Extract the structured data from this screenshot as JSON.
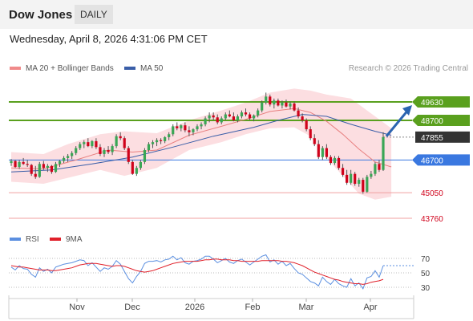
{
  "header": {
    "title": "Dow Jones",
    "timeframe": "DAILY"
  },
  "datetime": "Wednesday, April 8, 2026 4:31:06 PM CET",
  "legend": {
    "bb_label": "MA 20 + Bollinger Bands",
    "ma50_label": "MA 50",
    "rsi_label": "RSI",
    "ma9_label": "9MA",
    "credit": "Research © 2026 Trading Central"
  },
  "colors": {
    "up": "#3aa655",
    "down": "#d0021b",
    "bb_fill": "#fbd8dc",
    "ma20": "#e88080",
    "ma50": "#3a5ea8",
    "resistance": "#5aa01e",
    "support_blue": "#3a78e0",
    "support_red": "#f0a0a0",
    "last_price": "#333333",
    "arrow": "#2b64b0",
    "rsi": "#5b8fe0",
    "rsi_ma": "#e0202a"
  },
  "chart_data": [
    {
      "type": "candlestick",
      "title": "Dow Jones",
      "x_tick_labels": [
        "Nov",
        "Dec",
        "2026",
        "Feb",
        "Mar",
        "Apr"
      ],
      "price_levels": [
        {
          "value": 49630,
          "label": "49630",
          "kind": "resistance"
        },
        {
          "value": 48700,
          "label": "48700",
          "kind": "resistance"
        },
        {
          "value": 47855,
          "label": "47855",
          "kind": "last"
        },
        {
          "value": 46700,
          "label": "46700",
          "kind": "support"
        },
        {
          "value": 45050,
          "label": "45050",
          "kind": "support"
        },
        {
          "value": 43760,
          "label": "43760",
          "kind": "support"
        }
      ],
      "ylim": [
        43300,
        50600
      ],
      "series": [
        {
          "name": "MA 20 + Bollinger Bands"
        },
        {
          "name": "MA 50"
        }
      ],
      "candles": [
        [
          46550,
          46750,
          46400,
          46650
        ],
        [
          46650,
          46700,
          46300,
          46350
        ],
        [
          46350,
          46700,
          46250,
          46600
        ],
        [
          46600,
          46800,
          46450,
          46500
        ],
        [
          46500,
          46700,
          46350,
          46450
        ],
        [
          46450,
          46500,
          45900,
          46000
        ],
        [
          46000,
          46400,
          45750,
          45850
        ],
        [
          45850,
          46600,
          45800,
          46500
        ],
        [
          46500,
          46650,
          46200,
          46300
        ],
        [
          46300,
          46500,
          46100,
          46400
        ],
        [
          46400,
          46450,
          46000,
          46100
        ],
        [
          46100,
          46600,
          46050,
          46500
        ],
        [
          46500,
          46700,
          46350,
          46650
        ],
        [
          46650,
          46900,
          46550,
          46800
        ],
        [
          46800,
          47000,
          46600,
          46900
        ],
        [
          46900,
          47150,
          46750,
          47050
        ],
        [
          47050,
          47400,
          46950,
          47300
        ],
        [
          47300,
          47600,
          47200,
          47500
        ],
        [
          47500,
          47700,
          47300,
          47600
        ],
        [
          47600,
          47800,
          47350,
          47400
        ],
        [
          47400,
          47700,
          47300,
          47650
        ],
        [
          47650,
          47800,
          47250,
          47350
        ],
        [
          47350,
          47500,
          46900,
          47000
        ],
        [
          47000,
          47300,
          46850,
          47200
        ],
        [
          47200,
          47400,
          47000,
          47100
        ],
        [
          47100,
          47500,
          46950,
          47400
        ],
        [
          47400,
          48000,
          47300,
          47900
        ],
        [
          47900,
          48100,
          47700,
          47800
        ],
        [
          47800,
          47900,
          47200,
          47300
        ],
        [
          47300,
          47400,
          46500,
          46600
        ],
        [
          46600,
          46700,
          45950,
          46000
        ],
        [
          46000,
          46400,
          45900,
          46300
        ],
        [
          46300,
          46700,
          46200,
          46600
        ],
        [
          46600,
          47300,
          46500,
          47200
        ],
        [
          47200,
          47600,
          47100,
          47500
        ],
        [
          47500,
          47700,
          47300,
          47600
        ],
        [
          47600,
          47800,
          47400,
          47700
        ],
        [
          47700,
          47800,
          47500,
          47650
        ],
        [
          47650,
          47900,
          47550,
          47850
        ],
        [
          47850,
          48100,
          47700,
          48000
        ],
        [
          48000,
          48500,
          47900,
          48400
        ],
        [
          48400,
          48600,
          48200,
          48300
        ],
        [
          48300,
          48500,
          48150,
          48450
        ],
        [
          48450,
          48600,
          48100,
          48200
        ],
        [
          48200,
          48400,
          47900,
          48100
        ],
        [
          48100,
          48300,
          47950,
          48250
        ],
        [
          48250,
          48500,
          48150,
          48400
        ],
        [
          48400,
          48600,
          48250,
          48500
        ],
        [
          48500,
          48900,
          48400,
          48800
        ],
        [
          48800,
          49100,
          48600,
          48950
        ],
        [
          48950,
          49100,
          48700,
          48850
        ],
        [
          48850,
          49000,
          48500,
          48600
        ],
        [
          48600,
          48900,
          48500,
          48800
        ],
        [
          48800,
          49100,
          48700,
          49000
        ],
        [
          49000,
          49200,
          48850,
          48900
        ],
        [
          48900,
          49100,
          48650,
          48700
        ],
        [
          48700,
          49000,
          48600,
          48900
        ],
        [
          48900,
          49200,
          48800,
          49100
        ],
        [
          49100,
          49300,
          48900,
          49000
        ],
        [
          49000,
          49100,
          48700,
          48800
        ],
        [
          48800,
          49000,
          48650,
          48950
        ],
        [
          48950,
          49300,
          48850,
          49200
        ],
        [
          49200,
          49700,
          49100,
          49600
        ],
        [
          49600,
          50100,
          49500,
          49900
        ],
        [
          49900,
          50000,
          49400,
          49500
        ],
        [
          49500,
          49800,
          49300,
          49700
        ],
        [
          49700,
          49800,
          49400,
          49450
        ],
        [
          49450,
          49700,
          49300,
          49600
        ],
        [
          49600,
          49750,
          49350,
          49400
        ],
        [
          49400,
          49650,
          49250,
          49550
        ],
        [
          49550,
          49650,
          49150,
          49200
        ],
        [
          49200,
          49350,
          48800,
          48900
        ],
        [
          48900,
          49050,
          48600,
          48700
        ],
        [
          48700,
          48800,
          48150,
          48250
        ],
        [
          48250,
          48400,
          47700,
          47800
        ],
        [
          47800,
          48000,
          47400,
          47500
        ],
        [
          47500,
          47700,
          46750,
          46850
        ],
        [
          46850,
          47400,
          46700,
          47300
        ],
        [
          47300,
          47500,
          46750,
          46850
        ],
        [
          46850,
          46950,
          46450,
          46550
        ],
        [
          46550,
          46900,
          46450,
          46800
        ],
        [
          46800,
          46900,
          46200,
          46300
        ],
        [
          46300,
          46500,
          45850,
          45950
        ],
        [
          45950,
          46200,
          45450,
          45550
        ],
        [
          45550,
          46200,
          45450,
          46000
        ],
        [
          46000,
          46100,
          45400,
          45500
        ],
        [
          45500,
          45800,
          45350,
          45700
        ],
        [
          45700,
          45800,
          45000,
          45100
        ],
        [
          45100,
          45950,
          45050,
          45850
        ],
        [
          45850,
          46150,
          45750,
          46000
        ],
        [
          46000,
          46600,
          45900,
          46500
        ],
        [
          46500,
          46700,
          46100,
          46200
        ],
        [
          46200,
          48100,
          46150,
          47855
        ]
      ],
      "ma20_points": [
        [
          0,
          46300
        ],
        [
          8,
          46250
        ],
        [
          16,
          46700
        ],
        [
          24,
          47200
        ],
        [
          30,
          47100
        ],
        [
          36,
          47200
        ],
        [
          44,
          47950
        ],
        [
          52,
          48400
        ],
        [
          58,
          48750
        ],
        [
          64,
          49150
        ],
        [
          70,
          49300
        ],
        [
          74,
          49100
        ],
        [
          78,
          48650
        ],
        [
          82,
          48000
        ],
        [
          86,
          47250
        ],
        [
          90,
          46600
        ],
        [
          94,
          46350
        ]
      ],
      "ma50_points": [
        [
          0,
          46100
        ],
        [
          10,
          46200
        ],
        [
          20,
          46500
        ],
        [
          30,
          46850
        ],
        [
          40,
          47350
        ],
        [
          50,
          47900
        ],
        [
          60,
          48350
        ],
        [
          66,
          48700
        ],
        [
          72,
          49000
        ],
        [
          78,
          48900
        ],
        [
          84,
          48500
        ],
        [
          90,
          48150
        ],
        [
          94,
          47950
        ]
      ],
      "bb_upper_points": [
        [
          0,
          47100
        ],
        [
          8,
          47000
        ],
        [
          14,
          47500
        ],
        [
          22,
          48000
        ],
        [
          28,
          48150
        ],
        [
          36,
          48050
        ],
        [
          44,
          48700
        ],
        [
          52,
          49200
        ],
        [
          58,
          49600
        ],
        [
          64,
          50100
        ],
        [
          70,
          50300
        ],
        [
          74,
          50200
        ],
        [
          78,
          50000
        ],
        [
          84,
          49800
        ],
        [
          88,
          49200
        ],
        [
          92,
          48600
        ],
        [
          94,
          48300
        ]
      ],
      "bb_lower_points": [
        [
          0,
          45600
        ],
        [
          8,
          45500
        ],
        [
          14,
          45800
        ],
        [
          22,
          46200
        ],
        [
          28,
          45900
        ],
        [
          36,
          46300
        ],
        [
          44,
          47200
        ],
        [
          52,
          47600
        ],
        [
          58,
          48000
        ],
        [
          64,
          48300
        ],
        [
          70,
          48350
        ],
        [
          74,
          47900
        ],
        [
          78,
          46800
        ],
        [
          82,
          45900
        ],
        [
          86,
          45000
        ],
        [
          90,
          44700
        ],
        [
          94,
          44850
        ]
      ]
    },
    {
      "type": "line",
      "title": "RSI",
      "yticks": [
        70,
        50,
        30
      ],
      "ylim": [
        17,
        82
      ],
      "series": [
        {
          "name": "RSI",
          "values": [
            58,
            54,
            60,
            56,
            55,
            48,
            44,
            57,
            52,
            55,
            50,
            58,
            60,
            62,
            63,
            64,
            66,
            68,
            67,
            60,
            64,
            58,
            52,
            57,
            55,
            59,
            67,
            62,
            52,
            42,
            36,
            45,
            52,
            63,
            66,
            66,
            67,
            65,
            68,
            69,
            73,
            68,
            71,
            64,
            62,
            66,
            67,
            69,
            73,
            73,
            69,
            64,
            67,
            70,
            65,
            63,
            67,
            69,
            65,
            61,
            65,
            69,
            73,
            75,
            65,
            68,
            62,
            66,
            60,
            63,
            56,
            50,
            48,
            43,
            38,
            36,
            32,
            44,
            38,
            34,
            41,
            35,
            32,
            30,
            42,
            32,
            36,
            28,
            43,
            45,
            53,
            44,
            60
          ]
        },
        {
          "name": "9MA",
          "values": [
            60,
            59,
            58,
            58,
            57,
            56,
            55,
            54,
            54,
            54,
            53,
            53,
            54,
            55,
            56,
            57,
            59,
            61,
            62,
            63,
            63,
            63,
            62,
            61,
            60,
            59,
            60,
            60,
            59,
            57,
            55,
            53,
            52,
            51,
            52,
            53,
            55,
            57,
            59,
            61,
            63,
            64,
            65,
            66,
            66,
            66,
            66,
            67,
            68,
            68,
            69,
            69,
            68,
            68,
            68,
            67,
            67,
            66,
            66,
            66,
            66,
            66,
            67,
            67,
            67,
            67,
            67,
            66,
            66,
            65,
            64,
            62,
            60,
            57,
            54,
            51,
            49,
            47,
            45,
            43,
            41,
            40,
            38,
            37,
            36,
            35,
            35,
            34,
            35,
            37,
            38,
            39,
            41
          ]
        }
      ]
    }
  ]
}
